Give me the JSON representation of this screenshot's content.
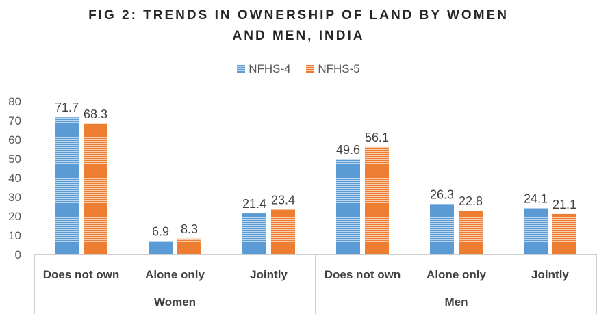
{
  "chart_data": {
    "type": "bar",
    "title_lines": [
      "FIG 2: TRENDS IN OWNERSHIP OF LAND BY WOMEN",
      "AND MEN, INDIA"
    ],
    "groups": [
      {
        "name": "Women",
        "categories": [
          "Does not own",
          "Alone only",
          "Jointly"
        ]
      },
      {
        "name": "Men",
        "categories": [
          "Does not own",
          "Alone only",
          "Jointly"
        ]
      }
    ],
    "series": [
      {
        "name": "NFHS-4",
        "color": "#5B9BD5",
        "values": [
          71.7,
          6.9,
          21.4,
          49.6,
          26.3,
          24.1
        ]
      },
      {
        "name": "NFHS-5",
        "color": "#ED7D31",
        "values": [
          68.3,
          8.3,
          23.4,
          56.1,
          22.8,
          21.1
        ]
      }
    ],
    "ylim": [
      0,
      80
    ],
    "yticks": [
      "0",
      "10",
      "20",
      "30",
      "40",
      "50",
      "60",
      "70",
      "80"
    ],
    "legend_position": "top",
    "grid": false,
    "bar_pattern": "horizontal-stripes"
  }
}
